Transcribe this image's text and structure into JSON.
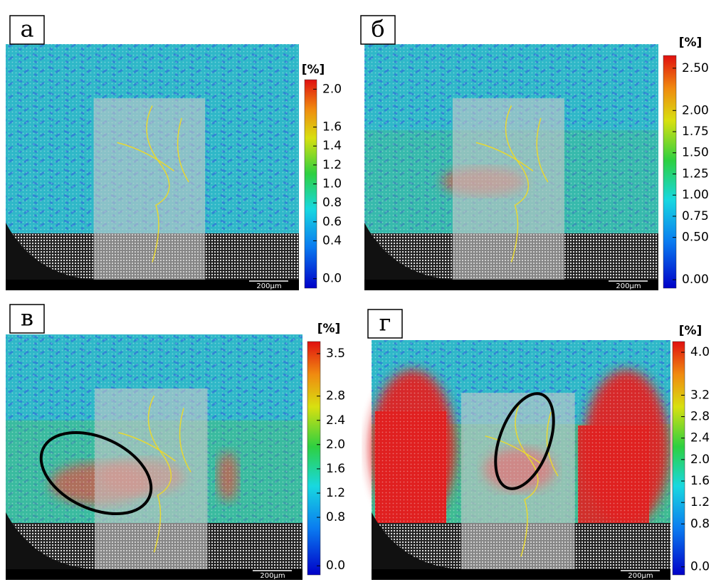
{
  "panels": [
    {
      "label": "а",
      "unit": "[%]",
      "scale_bar": "200μm",
      "clim": [
        -0.1,
        2.1
      ],
      "ticks": [
        {
          "value": 0,
          "label": "0.0"
        },
        {
          "value": 0.4,
          "label": "0.4"
        },
        {
          "value": 0.6,
          "label": "0.6"
        },
        {
          "value": 0.8,
          "label": "0.8"
        },
        {
          "value": 1,
          "label": "1.0"
        },
        {
          "value": 1.2,
          "label": "1.2"
        },
        {
          "value": 1.4,
          "label": "1.4"
        },
        {
          "value": 1.6,
          "label": "1.6"
        },
        {
          "value": 2,
          "label": "2.0"
        }
      ]
    },
    {
      "label": "б",
      "unit": "[%]",
      "scale_bar": "200μm",
      "clim": [
        -0.1,
        2.65
      ],
      "ticks": [
        {
          "value": 0,
          "label": "0.00"
        },
        {
          "value": 0.5,
          "label": "0.50"
        },
        {
          "value": 0.75,
          "label": "0.75"
        },
        {
          "value": 1,
          "label": "1.00"
        },
        {
          "value": 1.25,
          "label": "1.25"
        },
        {
          "value": 1.5,
          "label": "1.50"
        },
        {
          "value": 1.75,
          "label": "1.75"
        },
        {
          "value": 2,
          "label": "2.00"
        },
        {
          "value": 2.5,
          "label": "2.50"
        }
      ]
    },
    {
      "label": "в",
      "unit": "[%]",
      "scale_bar": "200μm",
      "clim": [
        -0.15,
        3.7
      ],
      "ticks": [
        {
          "value": 0,
          "label": "0.0"
        },
        {
          "value": 0.8,
          "label": "0.8"
        },
        {
          "value": 1.2,
          "label": "1.2"
        },
        {
          "value": 1.6,
          "label": "1.6"
        },
        {
          "value": 2,
          "label": "2.0"
        },
        {
          "value": 2.4,
          "label": "2.4"
        },
        {
          "value": 2.8,
          "label": "2.8"
        },
        {
          "value": 3.5,
          "label": "3.5"
        }
      ]
    },
    {
      "label": "г",
      "unit": "[%]",
      "scale_bar": "200μm",
      "clim": [
        -0.15,
        4.2
      ],
      "ticks": [
        {
          "value": 0,
          "label": "0.0"
        },
        {
          "value": 0.8,
          "label": "0.8"
        },
        {
          "value": 1.2,
          "label": "1.2"
        },
        {
          "value": 1.6,
          "label": "1.6"
        },
        {
          "value": 2,
          "label": "2.0"
        },
        {
          "value": 2.4,
          "label": "2.4"
        },
        {
          "value": 2.8,
          "label": "2.8"
        },
        {
          "value": 3.2,
          "label": "3.2"
        },
        {
          "value": 4,
          "label": "4.0"
        }
      ]
    }
  ]
}
